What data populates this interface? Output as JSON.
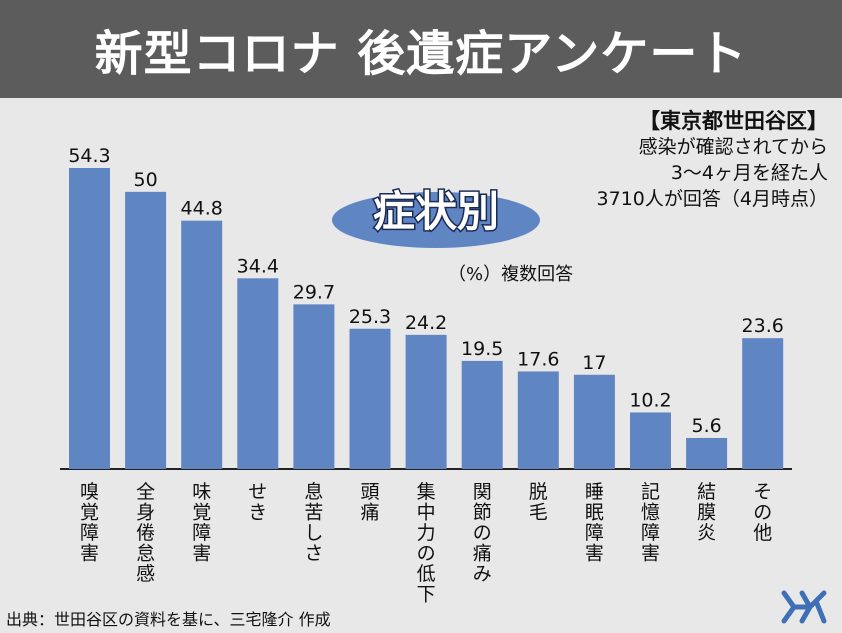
{
  "header": {
    "title": "新型コロナ 後遺症アンケート"
  },
  "info": {
    "region": "【東京都世田谷区】",
    "line1": "感染が確認されてから",
    "line2": "3〜4ヶ月を経た人",
    "line3": "3710人が回答（4月時点）"
  },
  "badge": {
    "label": "症状別"
  },
  "note": "（%）複数回答",
  "source": "出典：世田谷区の資料を基に、三宅隆介 作成",
  "colors": {
    "bar": "#5f86c3",
    "badge": "#5f86c3",
    "header": "#5c5c5c"
  },
  "chart_data": {
    "type": "bar",
    "categories": [
      "嗅覚障害",
      "全身倦怠感",
      "味覚障害",
      "せき",
      "息苦しさ",
      "頭痛",
      "集中力の低下",
      "関節の痛み",
      "脱毛",
      "睡眠障害",
      "記憶障害",
      "結膜炎",
      "その他"
    ],
    "values": [
      54.3,
      50,
      44.8,
      34.4,
      29.7,
      25.3,
      24.2,
      19.5,
      17.6,
      17,
      10.2,
      5.6,
      23.6
    ],
    "value_labels": [
      "54.3",
      "50",
      "44.8",
      "34.4",
      "29.7",
      "25.3",
      "24.2",
      "19.5",
      "17.6",
      "17",
      "10.2",
      "5.6",
      "23.6"
    ],
    "ylim": [
      0,
      54.3
    ],
    "grid": false,
    "xlabel": "",
    "ylabel": ""
  }
}
